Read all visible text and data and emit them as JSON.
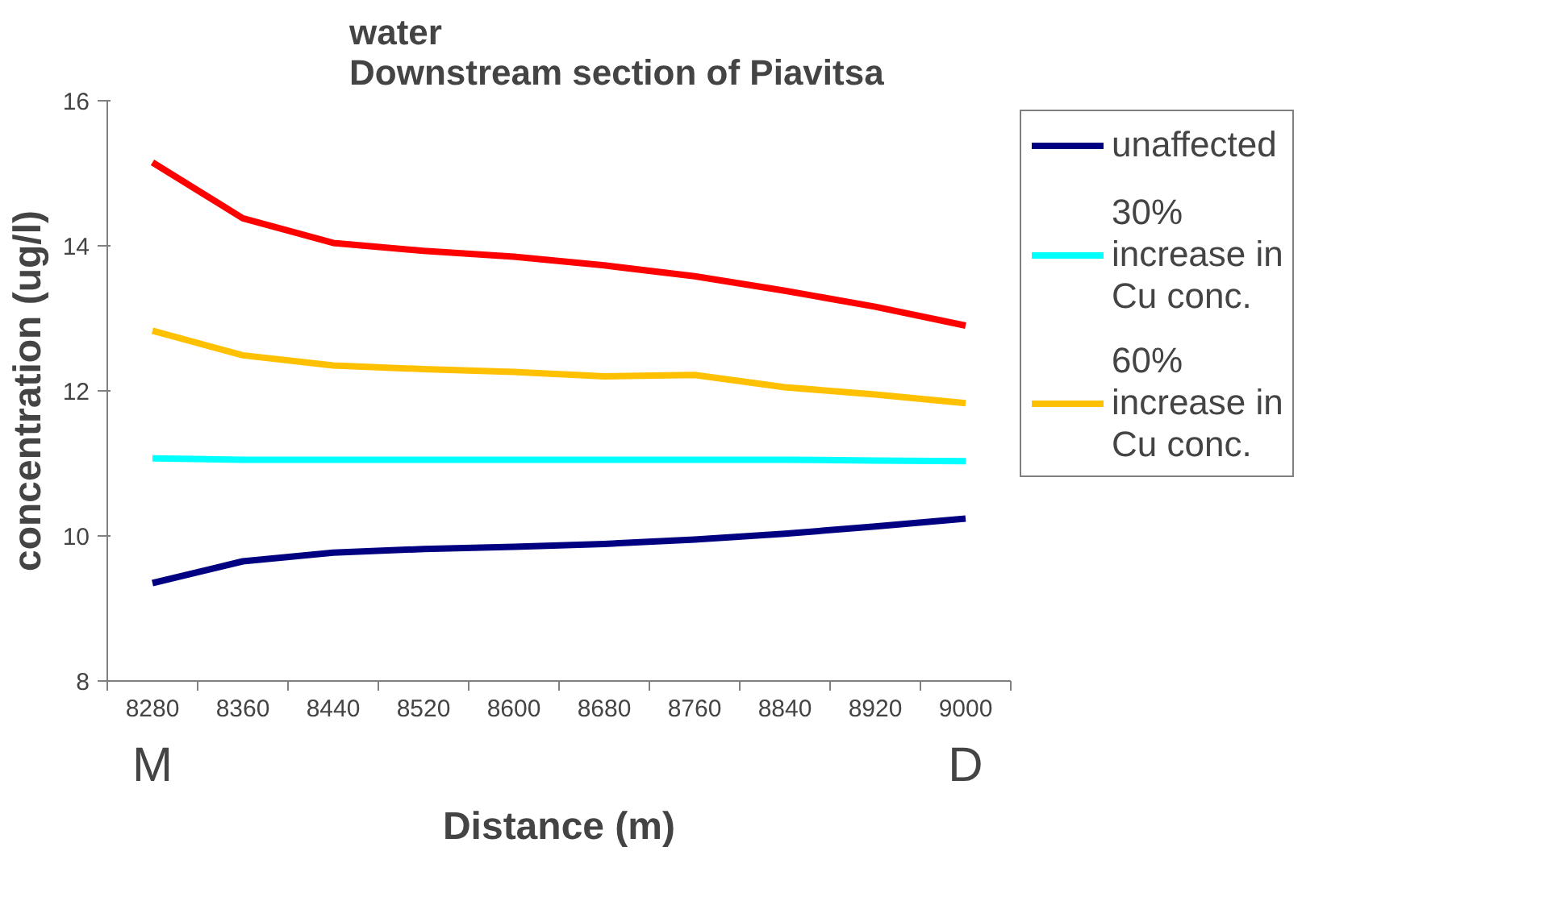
{
  "chart_data": {
    "type": "line",
    "title": "water\nDownstream section of Piavitsa",
    "xlabel": "Distance (m)",
    "ylabel": "concentration (ug/l)",
    "categories": [
      "8280",
      "8360",
      "8440",
      "8520",
      "8600",
      "8680",
      "8760",
      "8840",
      "8920",
      "9000"
    ],
    "series": [
      {
        "name": "unaffected",
        "color": "#000080",
        "values": [
          9.35,
          9.65,
          9.77,
          9.82,
          9.85,
          9.89,
          9.95,
          10.03,
          10.13,
          10.24
        ]
      },
      {
        "name": "30% increase in Cu conc.",
        "color": "#00ffff",
        "values": [
          11.07,
          11.05,
          11.05,
          11.05,
          11.05,
          11.05,
          11.05,
          11.05,
          11.04,
          11.03
        ]
      },
      {
        "name": "60% increase in Cu conc.",
        "color": "#ffc000",
        "values": [
          12.83,
          12.49,
          12.35,
          12.3,
          12.26,
          12.2,
          12.22,
          12.05,
          11.95,
          11.83
        ]
      },
      {
        "color": "#ff0000",
        "values": [
          15.15,
          14.38,
          14.04,
          13.93,
          13.85,
          13.73,
          13.58,
          13.38,
          13.16,
          12.9
        ]
      }
    ],
    "ylim": [
      8,
      16
    ],
    "yticks": [
      8,
      10,
      12,
      14,
      16
    ],
    "grid": false,
    "legend": "right",
    "marker": "none",
    "line_style": "solid",
    "annotations": [
      "M",
      "D"
    ]
  }
}
